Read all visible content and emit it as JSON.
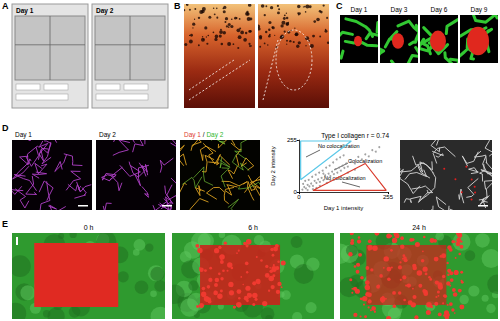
{
  "figure": {
    "panels": [
      {
        "letter": "A",
        "labels": [
          "Day 1",
          "Day 2"
        ]
      },
      {
        "letter": "B"
      },
      {
        "letter": "C",
        "labels": [
          "Day 1",
          "Day 3",
          "Day 6",
          "Day 9"
        ]
      },
      {
        "letter": "D",
        "labels": [
          "Day 1",
          "Day 2"
        ],
        "merge_label": [
          {
            "text": "Day 1",
            "color": "#e03c31"
          },
          {
            "text": " / ",
            "color": "#000000"
          },
          {
            "text": "Day 2",
            "color": "#2fb82f"
          }
        ]
      },
      {
        "letter": "E",
        "labels": [
          "0 h",
          "6 h",
          "24 h"
        ]
      }
    ]
  },
  "chart_data": {
    "type": "scatter",
    "title": "Type I collagen r = 0.74",
    "xlabel": "Day 1 intensity",
    "ylabel": "Day 2 intensity",
    "xlim": [
      0,
      255
    ],
    "ylim": [
      0,
      255
    ],
    "xticks": [
      0,
      255
    ],
    "yticks": [
      0,
      255
    ],
    "grid": false,
    "color": "#8c8c8c",
    "x": [
      10,
      15,
      20,
      25,
      30,
      35,
      40,
      45,
      50,
      55,
      60,
      65,
      70,
      75,
      80,
      85,
      90,
      95,
      100,
      105,
      110,
      115,
      120,
      125,
      130,
      135,
      140,
      150,
      160,
      170,
      180,
      190,
      200,
      210,
      220,
      230,
      12,
      18,
      28,
      38,
      48,
      58,
      68,
      78,
      88,
      98,
      108,
      118,
      128,
      40,
      60,
      80,
      100,
      120,
      140,
      160,
      25,
      50,
      70,
      90
    ],
    "values": [
      12,
      25,
      18,
      35,
      28,
      42,
      30,
      55,
      45,
      62,
      50,
      70,
      58,
      82,
      66,
      90,
      78,
      100,
      88,
      112,
      95,
      120,
      105,
      130,
      118,
      140,
      125,
      150,
      140,
      172,
      160,
      185,
      175,
      205,
      198,
      220,
      40,
      55,
      60,
      75,
      85,
      95,
      105,
      120,
      130,
      145,
      160,
      170,
      180,
      15,
      30,
      45,
      60,
      75,
      95,
      110,
      10,
      20,
      90,
      60
    ],
    "regions": [
      {
        "label": "No colocalization",
        "color": "#5bc8e8",
        "vertices": [
          [
            5,
            60
          ],
          [
            5,
            250
          ],
          [
            150,
            250
          ]
        ]
      },
      {
        "label": "No colocalization",
        "color": "#d93a2b",
        "vertices": [
          [
            40,
            8
          ],
          [
            250,
            8
          ],
          [
            190,
            140
          ]
        ]
      }
    ],
    "annotations": [
      "Colocalization"
    ]
  }
}
